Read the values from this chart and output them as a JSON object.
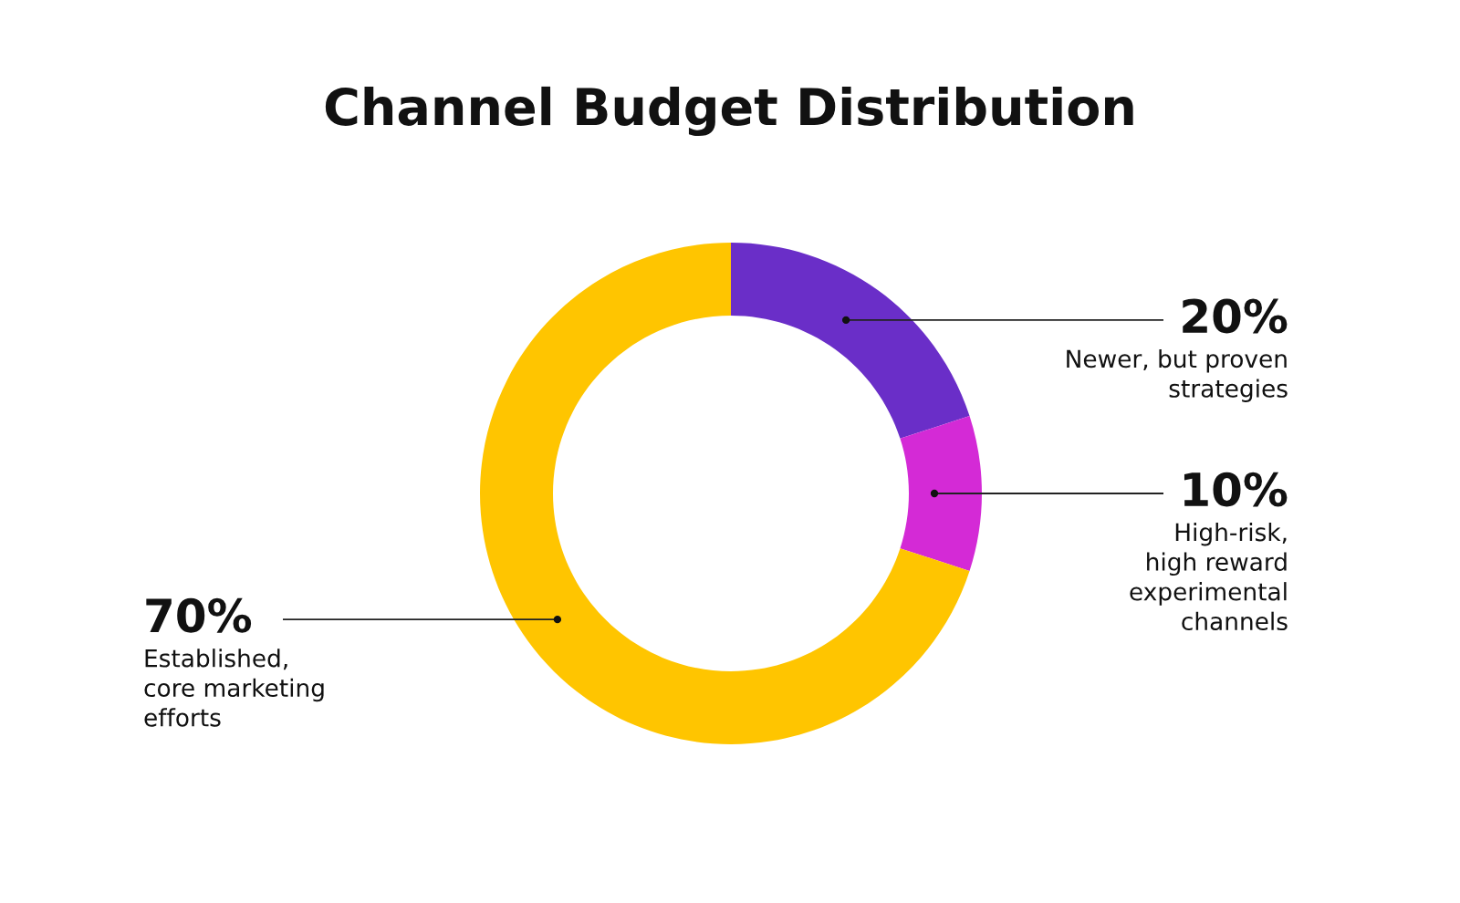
{
  "chart_data": {
    "type": "donut",
    "title": "Channel Budget Distribution",
    "categories": [
      "Newer, but proven\nstrategies",
      "High-risk,\nhigh reward\nexperimental\nchannels",
      "Established,\ncore marketing\nefforts"
    ],
    "values": [
      20,
      10,
      70
    ],
    "colors": [
      "#6a2ec8",
      "#d42ad6",
      "#ffc500"
    ],
    "value_labels": [
      "20%",
      "10%",
      "70%"
    ]
  }
}
